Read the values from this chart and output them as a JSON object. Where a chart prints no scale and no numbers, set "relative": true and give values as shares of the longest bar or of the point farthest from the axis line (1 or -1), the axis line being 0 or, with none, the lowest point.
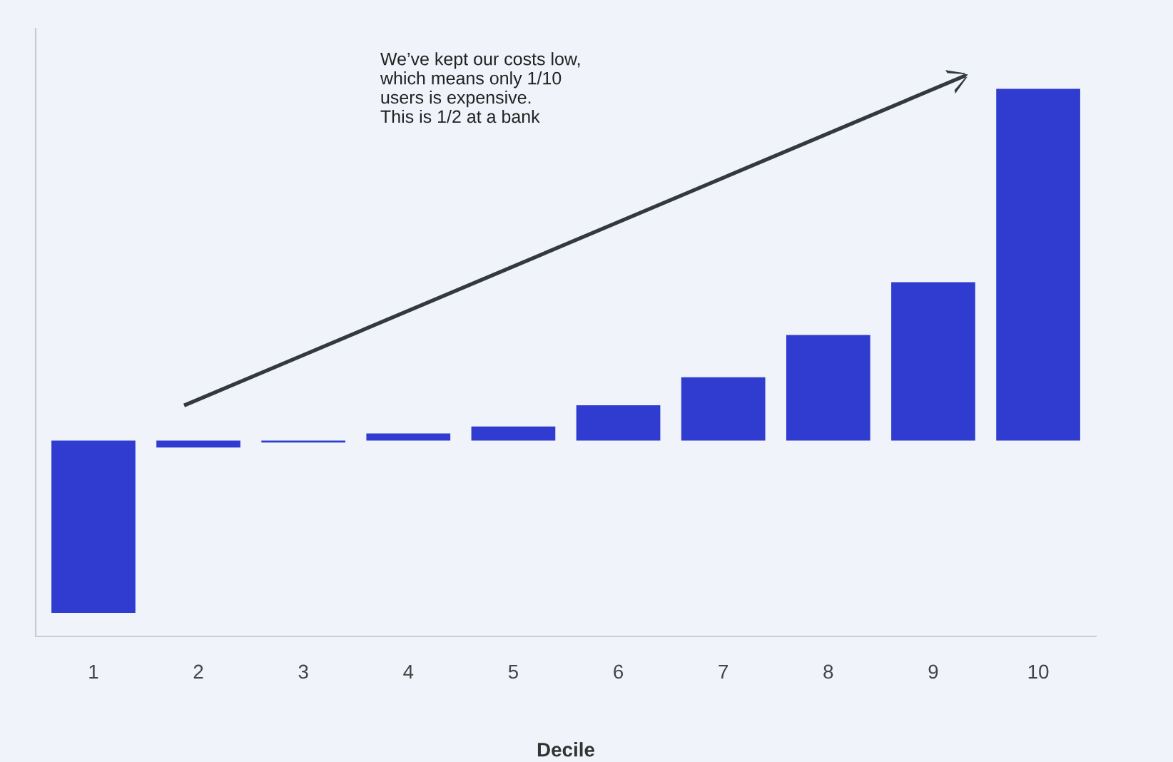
{
  "chart_data": {
    "type": "bar",
    "relative": true,
    "xlabel": "Decile",
    "categories": [
      "1",
      "2",
      "3",
      "4",
      "5",
      "6",
      "7",
      "8",
      "9",
      "10"
    ],
    "values": [
      -0.49,
      -0.02,
      -0.006,
      0.02,
      0.04,
      0.1,
      0.18,
      0.3,
      0.45,
      1
    ],
    "color": "#303cd0",
    "grid": false,
    "tick_labels": "x",
    "annotations": [
      "We’ve kept our costs low,\nwhich means only 1/10\nusers is expensive.\nThis is 1/2 at a bank"
    ]
  }
}
